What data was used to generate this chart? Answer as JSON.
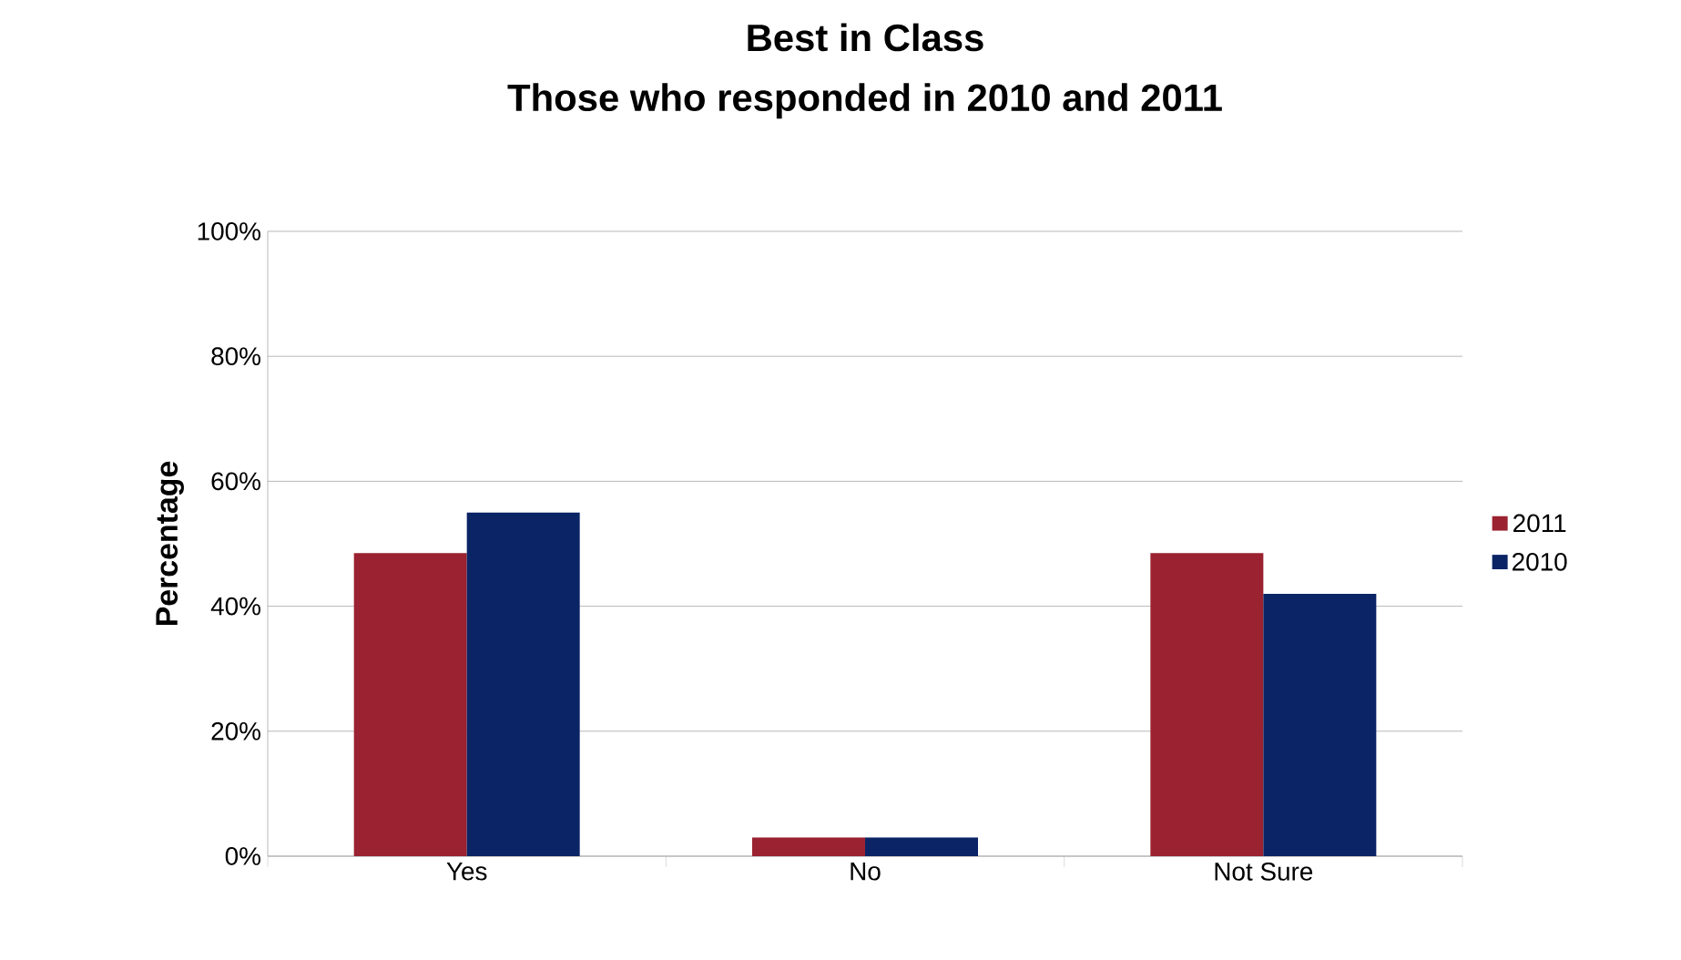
{
  "chart_data": {
    "type": "bar",
    "title": "Best in Class",
    "subtitle": "Those who responded in 2010 and 2011",
    "ylabel": "Percentage",
    "categories": [
      "Yes",
      "No",
      "Not Sure"
    ],
    "series": [
      {
        "name": "2011",
        "color": "#9b2231",
        "values": [
          48.5,
          3,
          48.5
        ]
      },
      {
        "name": "2010",
        "color": "#0b2466",
        "values": [
          55,
          3,
          42
        ]
      }
    ],
    "ylim": [
      0,
      100
    ],
    "yticks": [
      {
        "value": 0,
        "label": "0%"
      },
      {
        "value": 20,
        "label": "20%"
      },
      {
        "value": 40,
        "label": "40%"
      },
      {
        "value": 60,
        "label": "60%"
      },
      {
        "value": 80,
        "label": "80%"
      },
      {
        "value": 100,
        "label": "100%"
      }
    ],
    "grid": "y",
    "legend": "right"
  }
}
